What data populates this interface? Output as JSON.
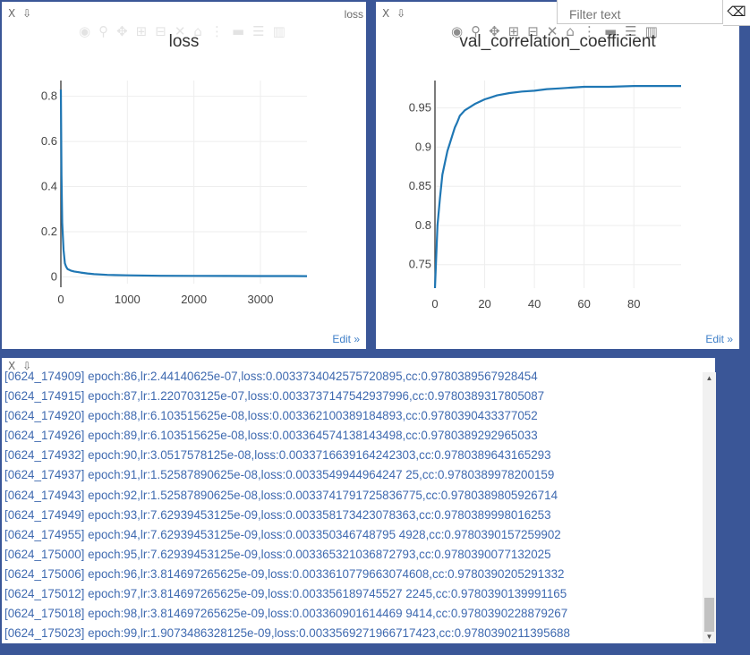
{
  "panes": {
    "close_glyph": "X",
    "pin_glyph": "⇩"
  },
  "loss_pane": {
    "tag": "loss",
    "title": "loss",
    "edit_label": "Edit »"
  },
  "val_pane": {
    "title": "val_correlation_coefficient",
    "edit_label": "Edit »"
  },
  "filter": {
    "placeholder": "Filter text",
    "eraser_icon": "eraser-icon"
  },
  "modebar_icons": [
    "camera-icon",
    "zoom-icon",
    "pan-icon",
    "zoom-in-icon",
    "zoom-out-icon",
    "autoscale-icon",
    "reset-icon",
    "spike-icon",
    "hover-closest-icon",
    "hover-compare-icon",
    "plotly-logo-icon"
  ],
  "chart_data": [
    {
      "type": "line",
      "title": "loss",
      "xlabel": "",
      "ylabel": "",
      "xlim": [
        0,
        3700
      ],
      "ylim": [
        -0.03,
        0.87
      ],
      "xticks": [
        "0",
        "1000",
        "2000",
        "3000"
      ],
      "yticks": [
        "0",
        "0.2",
        "0.4",
        "0.6",
        "0.8"
      ],
      "grid": true,
      "color": "#1f77b4",
      "series": [
        {
          "x": [
            0,
            10,
            20,
            40,
            60,
            80,
            100,
            150,
            200,
            300,
            400,
            500,
            700,
            1000,
            1500,
            2000,
            2500,
            3000,
            3500,
            3700
          ],
          "y": [
            0.83,
            0.45,
            0.24,
            0.12,
            0.06,
            0.045,
            0.035,
            0.028,
            0.024,
            0.019,
            0.015,
            0.012,
            0.009,
            0.007,
            0.005,
            0.0045,
            0.004,
            0.0038,
            0.0036,
            0.0035
          ]
        }
      ]
    },
    {
      "type": "line",
      "title": "val_correlation_coefficient",
      "xlabel": "",
      "ylabel": "",
      "xlim": [
        0,
        99
      ],
      "ylim": [
        0.72,
        0.985
      ],
      "xticks": [
        "0",
        "20",
        "40",
        "60",
        "80"
      ],
      "yticks": [
        "0.75",
        "0.8",
        "0.85",
        "0.9",
        "0.95"
      ],
      "grid": true,
      "color": "#1f77b4",
      "series": [
        {
          "x": [
            0,
            1,
            2,
            3,
            4,
            5,
            6,
            7,
            8,
            9,
            10,
            12,
            14,
            16,
            18,
            20,
            22,
            25,
            30,
            35,
            40,
            45,
            50,
            55,
            60,
            70,
            80,
            90,
            99
          ],
          "y": [
            0.72,
            0.8,
            0.835,
            0.865,
            0.88,
            0.895,
            0.905,
            0.915,
            0.925,
            0.932,
            0.94,
            0.947,
            0.951,
            0.955,
            0.958,
            0.961,
            0.963,
            0.966,
            0.969,
            0.971,
            0.972,
            0.974,
            0.975,
            0.976,
            0.977,
            0.977,
            0.978,
            0.978,
            0.978
          ]
        }
      ]
    }
  ],
  "log_lines": [
    "[0624_174909] epoch:86,lr:2.44140625e-07,loss:0.0033734042575720895,cc:0.9780389567928454",
    "[0624_174915] epoch:87,lr:1.220703125e-07,loss:0.0033737147542937996,cc:0.9780389317805087",
    "[0624_174920] epoch:88,lr:6.103515625e-08,loss:0.003362100389184893,cc:0.9780390433377052",
    "[0624_174926] epoch:89,lr:6.103515625e-08,loss:0.003364574138143498,cc:0.9780389292965033",
    "[0624_174932] epoch:90,lr:3.0517578125e-08,loss:0.0033716639164242303,cc:0.9780389643165293",
    "[0624_174937] epoch:91,lr:1.52587890625e-08,loss:0.0033549944964247 25,cc:0.9780389978200159",
    "[0624_174943] epoch:92,lr:1.52587890625e-08,loss:0.0033741791725836775,cc:0.9780389805926714",
    "[0624_174949] epoch:93,lr:7.62939453125e-09,loss:0.003358173423078363,cc:0.9780389998016253",
    "[0624_174955] epoch:94,lr:7.62939453125e-09,loss:0.003350346748795 4928,cc:0.9780390157259902",
    "[0624_175000] epoch:95,lr:7.62939453125e-09,loss:0.003365321036872793,cc:0.9780390077132025",
    "[0624_175006] epoch:96,lr:3.814697265625e-09,loss:0.0033610779663074608,cc:0.9780390205291332",
    "[0624_175012] epoch:97,lr:3.814697265625e-09,loss:0.003356189745527 2245,cc:0.9780390139991165",
    "[0624_175018] epoch:98,lr:3.814697265625e-09,loss:0.003360901614469 9414,cc:0.9780390228879267",
    "[0624_175023] epoch:99,lr:1.9073486328125e-09,loss:0.0033569271966717423,cc:0.9780390211395688"
  ]
}
